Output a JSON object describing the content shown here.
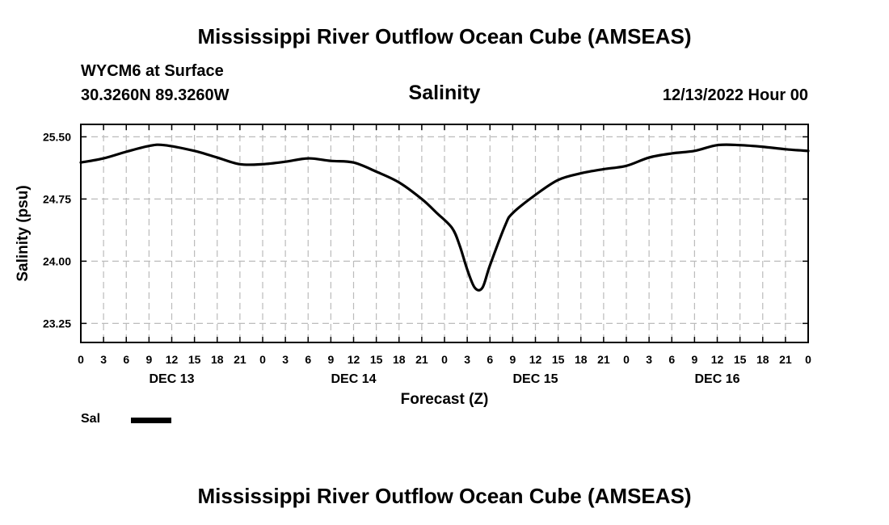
{
  "header": {
    "title": "Mississippi River Outflow Ocean Cube (AMSEAS)",
    "station": "WYCM6 at Surface",
    "coordinates": "30.3260N  89.3260W",
    "chart_title": "Salinity",
    "datetime": "12/13/2022 Hour 00"
  },
  "footer": {
    "title": "Mississippi River Outflow Ocean Cube (AMSEAS)"
  },
  "legend": {
    "label": "Sal"
  },
  "colors": {
    "line": "#000000",
    "grid": "#bbbbbb"
  },
  "chart_data": {
    "type": "line",
    "title": "Salinity",
    "xlabel": "Forecast (Z)",
    "ylabel": "Salinity (psu)",
    "xlim": [
      0,
      96
    ],
    "ylim": [
      23.02,
      25.65
    ],
    "x_tick_labels": [
      "0",
      "3",
      "6",
      "9",
      "12",
      "15",
      "18",
      "21",
      "0",
      "3",
      "6",
      "9",
      "12",
      "15",
      "18",
      "21",
      "0",
      "3",
      "6",
      "9",
      "12",
      "15",
      "18",
      "21",
      "0",
      "3",
      "6",
      "9",
      "12",
      "15",
      "18",
      "21",
      "0"
    ],
    "y_ticks": [
      23.25,
      24.0,
      24.75,
      25.5
    ],
    "y_tick_labels": [
      "23.25",
      "24.00",
      "24.75",
      "25.50"
    ],
    "day_labels": [
      {
        "label": "DEC 13",
        "hour": 12
      },
      {
        "label": "DEC 14",
        "hour": 36
      },
      {
        "label": "DEC 15",
        "hour": 60
      },
      {
        "label": "DEC 16",
        "hour": 84
      }
    ],
    "grid": true,
    "legend_position": "bottom-left",
    "series": [
      {
        "name": "Sal",
        "x": [
          0,
          3,
          6,
          9,
          11,
          15,
          18,
          21,
          24,
          27,
          30,
          33,
          36,
          39,
          42,
          45,
          47,
          49,
          50,
          51,
          52,
          53,
          54,
          56,
          57,
          60,
          63,
          66,
          69,
          72,
          75,
          78,
          81,
          84,
          87,
          90,
          93,
          96
        ],
        "y": [
          25.19,
          25.24,
          25.32,
          25.39,
          25.4,
          25.33,
          25.25,
          25.17,
          25.17,
          25.2,
          25.24,
          25.21,
          25.19,
          25.08,
          24.95,
          24.75,
          24.58,
          24.4,
          24.19,
          23.9,
          23.68,
          23.68,
          23.95,
          24.43,
          24.58,
          24.8,
          24.98,
          25.06,
          25.11,
          25.15,
          25.25,
          25.3,
          25.33,
          25.4,
          25.4,
          25.38,
          25.35,
          25.33
        ]
      }
    ]
  }
}
